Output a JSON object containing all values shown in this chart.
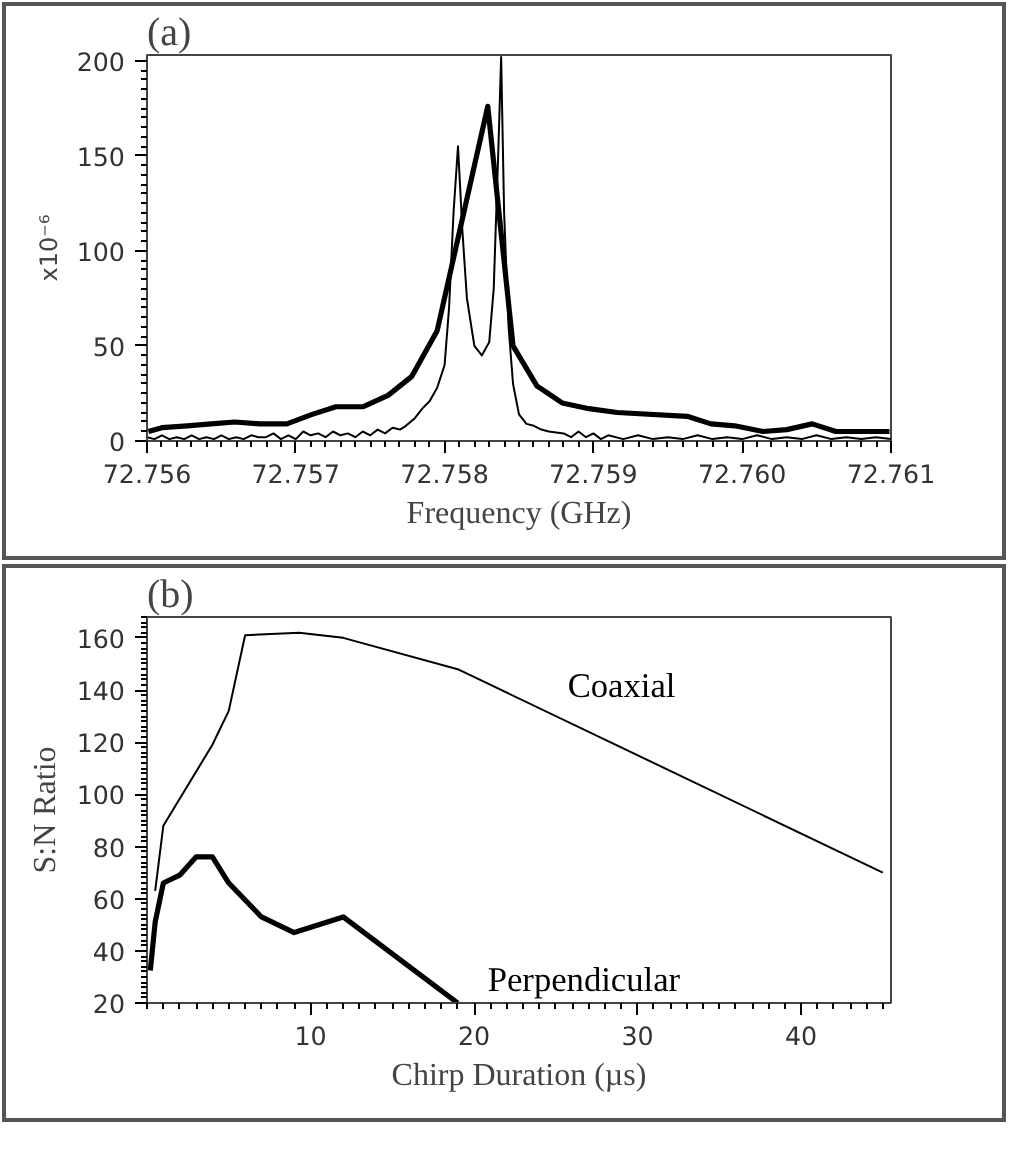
{
  "chart_data": [
    {
      "type": "line",
      "title": "(a)",
      "xlabel": "Frequency (GHz)",
      "ylabel": "x10⁻⁶",
      "xlim": [
        72.756,
        72.761
      ],
      "ylim": [
        0,
        203
      ],
      "xticks": [
        72.756,
        72.757,
        72.758,
        72.759,
        {
          "value": 72.76,
          "label": "72.760"
        },
        72.761
      ],
      "yticks": [
        0,
        50,
        100,
        150,
        200
      ],
      "grid": false,
      "marker": "none",
      "line_style": "solid",
      "series": [
        {
          "color": "#000000",
          "x": [
            72.75601,
            72.7561,
            72.75627,
            72.75643,
            72.75659,
            72.75676,
            72.75694,
            72.75711,
            72.75727,
            72.75745,
            72.75762,
            72.75778,
            72.75795,
            72.75829,
            72.75846,
            72.75862,
            72.75879,
            72.75897,
            72.75916,
            72.75963,
            72.75979,
            72.75995,
            72.76014,
            72.7603,
            72.76047,
            72.76063,
            72.76099
          ],
          "values": [
            5,
            7,
            8,
            9,
            10,
            9,
            9,
            14,
            18,
            18,
            24,
            34,
            58,
            176,
            50,
            29,
            20,
            17,
            15,
            13,
            9,
            8,
            5,
            6,
            9,
            5,
            5
          ]
        },
        {
          "color": "#000000",
          "x": [
            72.756,
            72.75605,
            72.7561,
            72.75615,
            72.7562,
            72.75625,
            72.7563,
            72.75635,
            72.7564,
            72.75645,
            72.7565,
            72.75655,
            72.7566,
            72.75665,
            72.7567,
            72.75675,
            72.7568,
            72.75685,
            72.7569,
            72.75695,
            72.757,
            72.75705,
            72.7571,
            72.75715,
            72.7572,
            72.75725,
            72.7573,
            72.75735,
            72.7574,
            72.75745,
            72.7575,
            72.75755,
            72.7576,
            72.75765,
            72.7577,
            72.75774,
            72.7578,
            72.75785,
            72.7579,
            72.75795,
            72.758,
            72.75803,
            72.75806,
            72.75809,
            72.75812,
            72.75815,
            72.7582,
            72.75825,
            72.7583,
            72.75833,
            72.75836,
            72.75838,
            72.7584,
            72.75843,
            72.75846,
            72.7585,
            72.75855,
            72.7586,
            72.75865,
            72.7587,
            72.7588,
            72.75885,
            72.7589,
            72.75895,
            72.759,
            72.75905,
            72.7591,
            72.7592,
            72.7593,
            72.7594,
            72.7595,
            72.7596,
            72.7597,
            72.7598,
            72.7599,
            72.76,
            72.7601,
            72.7602,
            72.7603,
            72.7604,
            72.7605,
            72.7606,
            72.7607,
            72.7608,
            72.7609,
            72.761
          ],
          "values": [
            2,
            1,
            3,
            1,
            2,
            1,
            3,
            1,
            2,
            1,
            3,
            1,
            2,
            1,
            3,
            2,
            2,
            4,
            1,
            3,
            1,
            5,
            3,
            4,
            2,
            5,
            3,
            4,
            2,
            5,
            3,
            6,
            4,
            7,
            6,
            8,
            12,
            17,
            21,
            28,
            40,
            70,
            120,
            155,
            110,
            75,
            50,
            45,
            52,
            80,
            150,
            202,
            120,
            60,
            30,
            14,
            9,
            8,
            6,
            5,
            4,
            2,
            5,
            2,
            4,
            1,
            3,
            1,
            3,
            1,
            2,
            1,
            3,
            1,
            2,
            1,
            3,
            1,
            2,
            1,
            3,
            1,
            2,
            1,
            2,
            1
          ]
        }
      ]
    },
    {
      "type": "line",
      "title": "(b)",
      "xlabel": "Chirp Duration (µs)",
      "ylabel": "S:N Ratio",
      "xlim": [
        0,
        45.5
      ],
      "ylim": [
        20,
        168
      ],
      "xticks": [
        10,
        20,
        30,
        40
      ],
      "yticks": [
        20,
        40,
        60,
        80,
        100,
        120,
        140,
        160
      ],
      "grid": false,
      "marker": "none",
      "line_style": "solid",
      "series": [
        {
          "name": "Coaxial",
          "color": "#000000",
          "x": [
            0.5,
            1,
            4,
            5,
            6,
            9.3,
            12,
            19,
            45
          ],
          "values": [
            63,
            88,
            119,
            132,
            161,
            162,
            160,
            148,
            70
          ]
        },
        {
          "name": "Perpendicular",
          "color": "#000000",
          "x": [
            0.2,
            0.5,
            1,
            2,
            3,
            4,
            5,
            7,
            9,
            12,
            19
          ],
          "values": [
            32.5,
            51,
            66,
            69,
            76,
            76,
            66,
            53,
            47,
            53,
            20
          ]
        }
      ]
    }
  ]
}
